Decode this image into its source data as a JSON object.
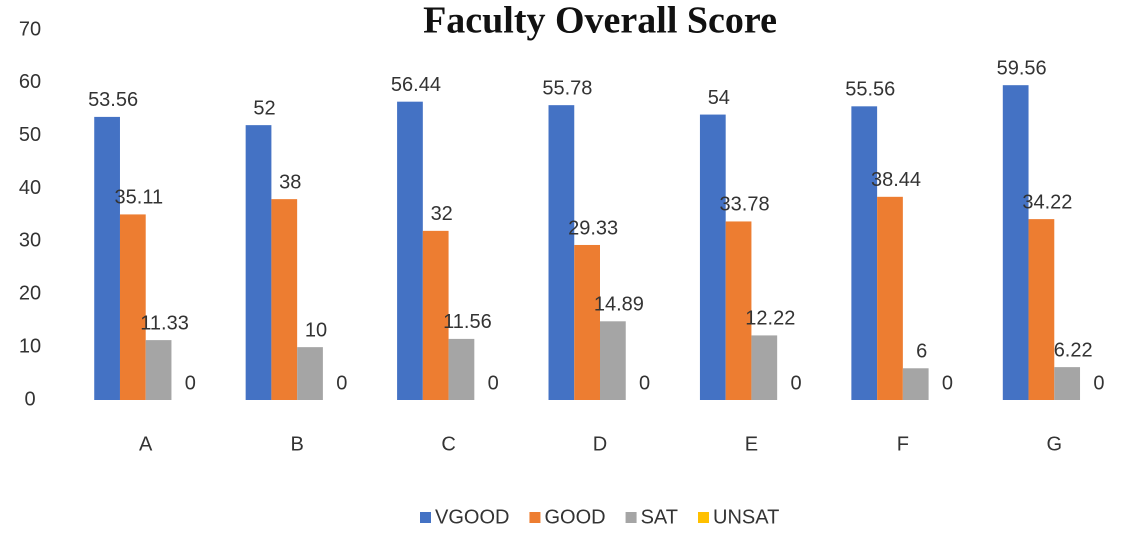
{
  "chart_data": {
    "type": "bar",
    "title": "Faculty Overall Score",
    "categories": [
      "A",
      "B",
      "C",
      "D",
      "E",
      "F",
      "G"
    ],
    "series": [
      {
        "name": "VGOOD",
        "color": "#4472c4",
        "values": [
          53.56,
          52,
          56.44,
          55.78,
          54,
          55.56,
          59.56
        ]
      },
      {
        "name": "GOOD",
        "color": "#ed7d31",
        "values": [
          35.11,
          38,
          32,
          29.33,
          33.78,
          38.44,
          34.22
        ]
      },
      {
        "name": "SAT",
        "color": "#a5a5a5",
        "values": [
          11.33,
          10,
          11.56,
          14.89,
          12.22,
          6,
          6.22
        ]
      },
      {
        "name": "UNSAT",
        "color": "#ffc000",
        "values": [
          0,
          0,
          0,
          0,
          0,
          0,
          0
        ]
      }
    ],
    "ylim": [
      0,
      70
    ],
    "yticks": [
      0,
      10,
      20,
      30,
      40,
      50,
      60,
      70
    ],
    "grid": false,
    "legend": "bottom"
  }
}
